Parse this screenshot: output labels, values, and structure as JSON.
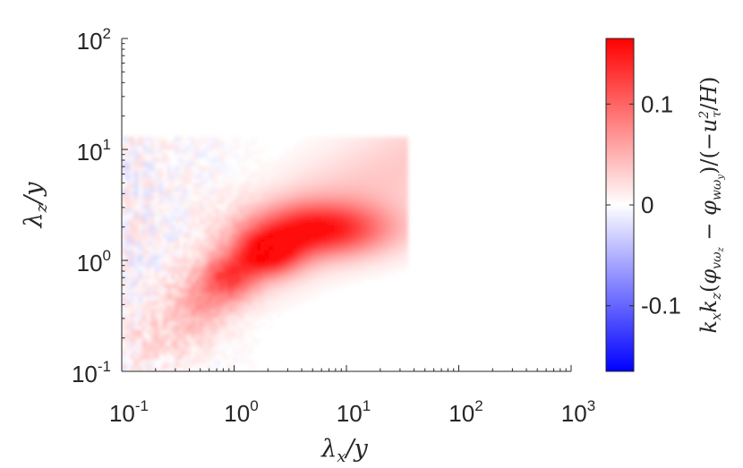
{
  "chart_data": {
    "type": "heatmap",
    "x_scale": "log",
    "y_scale": "log",
    "xlim": [
      0.1,
      1000
    ],
    "ylim": [
      0.1,
      100
    ],
    "x_ticks": [
      {
        "value": 0.1,
        "base": "10",
        "exp": "-1"
      },
      {
        "value": 1,
        "base": "10",
        "exp": "0"
      },
      {
        "value": 10,
        "base": "10",
        "exp": "1"
      },
      {
        "value": 100,
        "base": "10",
        "exp": "2"
      },
      {
        "value": 1000,
        "base": "10",
        "exp": "3"
      }
    ],
    "y_ticks": [
      {
        "value": 0.1,
        "base": "10",
        "exp": "-1"
      },
      {
        "value": 1,
        "base": "10",
        "exp": "0"
      },
      {
        "value": 10,
        "base": "10",
        "exp": "1"
      },
      {
        "value": 100,
        "base": "10",
        "exp": "2"
      }
    ],
    "xlabel": {
      "sym": "λ",
      "sub": "x",
      "tail": "/y"
    },
    "ylabel": {
      "sym": "λ",
      "sub": "z",
      "tail": "/y"
    },
    "data_extent": {
      "x": [
        0.1,
        35
      ],
      "y": [
        0.1,
        13
      ]
    },
    "peak_regions": [
      {
        "x_center": 6.0,
        "y_center": 1.9,
        "x_spread_decades": 0.45,
        "y_spread_decades": 0.17,
        "value": 0.13
      },
      {
        "x_center": 2.0,
        "y_center": 1.15,
        "x_spread_decades": 0.2,
        "y_spread_decades": 0.14,
        "value": 0.13
      },
      {
        "x_center": 0.9,
        "y_center": 0.7,
        "x_spread_decades": 0.18,
        "y_spread_decades": 0.15,
        "value": 0.1
      },
      {
        "x_center": 0.45,
        "y_center": 0.38,
        "x_spread_decades": 0.2,
        "y_spread_decades": 0.2,
        "value": 0.05
      },
      {
        "x_center": 0.2,
        "y_center": 0.18,
        "x_spread_decades": 0.2,
        "y_spread_decades": 0.2,
        "value": 0.02
      }
    ],
    "colorbar": {
      "clim": [
        -0.165,
        0.165
      ],
      "ticks": [
        "-0.1",
        "0",
        "0.1"
      ],
      "tick_values": [
        -0.1,
        0,
        0.1
      ],
      "colors": {
        "min": "#0000ff",
        "mid": "#ffffff",
        "max": "#ff0000"
      },
      "label": "k_x k_z(φ_vω_z − φ_wω_y)/(−u_τ²/H)"
    }
  }
}
